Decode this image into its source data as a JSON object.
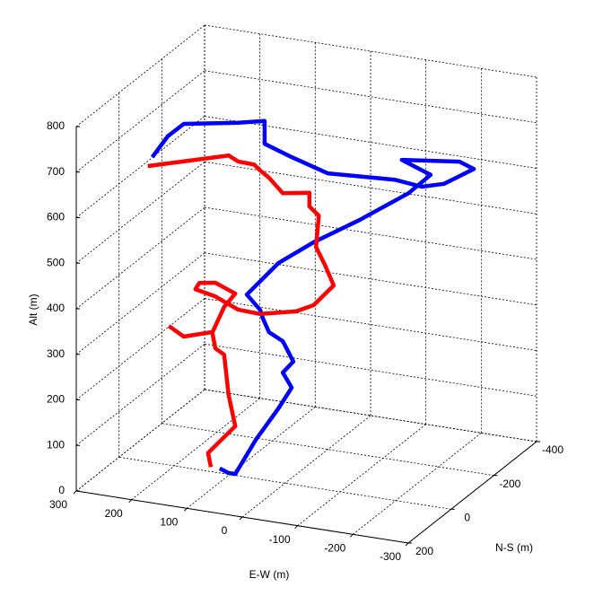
{
  "chart_data": {
    "type": "line3d",
    "xlabel": "E-W (m)",
    "ylabel": "N-S (m)",
    "zlabel": "Alt (m)",
    "xlim": [
      -300,
      300
    ],
    "ylim": [
      -400,
      200
    ],
    "zlim": [
      0,
      800
    ],
    "xticks": [
      -300,
      -200,
      -100,
      0,
      100,
      200,
      300
    ],
    "yticks": [
      -400,
      -200,
      0,
      200
    ],
    "zticks": [
      0,
      100,
      200,
      300,
      400,
      500,
      600,
      700,
      800
    ],
    "grid": true,
    "series": [
      {
        "color": "#0000ff",
        "x": [
          118,
          102,
          90,
          53,
          12,
          -12,
          4,
          -15,
          4,
          29,
          40,
          45,
          69,
          12,
          -52,
          -134,
          -223,
          -263,
          -211,
          -238,
          -264,
          -210,
          -247,
          -198,
          -77,
          -12,
          37,
          37,
          85,
          183,
          212,
          240
        ],
        "y": [
          0,
          0,
          0,
          0,
          0,
          0,
          0,
          0,
          0,
          0,
          0,
          0,
          0,
          0,
          0,
          0,
          0,
          0,
          0,
          -200,
          -200,
          -200,
          0,
          0,
          0,
          0,
          0,
          0,
          0,
          0,
          0,
          0
        ],
        "z": [
          10,
          3,
          3,
          85,
          162,
          212,
          242,
          270,
          311,
          326,
          354,
          372,
          401,
          481,
          539,
          603,
          679,
          727,
          750,
          677,
          666,
          623,
          698,
          704,
          695,
          718,
          738,
          788,
          775,
          754,
          721,
          670
        ]
      },
      {
        "color": "#ff0000",
        "x": [
          210,
          183,
          131,
          110,
          90,
          126,
          155,
          162,
          126,
          85,
          45,
          -20,
          -52,
          -88,
          -72,
          -56,
          -61,
          -44,
          -44,
          4,
          29,
          45,
          56,
          85,
          102,
          248,
          null,
          134,
          139,
          90,
          102,
          110,
          126,
          131
        ],
        "y": [
          0,
          0,
          0,
          0,
          0,
          0,
          0,
          0,
          0,
          0,
          0,
          0,
          0,
          0,
          0,
          0,
          0,
          0,
          0,
          0,
          0,
          0,
          0,
          0,
          0,
          0,
          null,
          0,
          0,
          0,
          0,
          0,
          0,
          0
        ],
        "z": [
          305,
          287,
          307,
          366,
          399,
          416,
          410,
          395,
          386,
          365,
          363,
          381,
          401,
          451,
          493,
          529,
          599,
          616,
          646,
          636,
          665,
          678,
          689,
          690,
          700,
          649,
          null,
          10,
          40,
          108,
          174,
          261,
          272,
          303
        ]
      }
    ]
  }
}
